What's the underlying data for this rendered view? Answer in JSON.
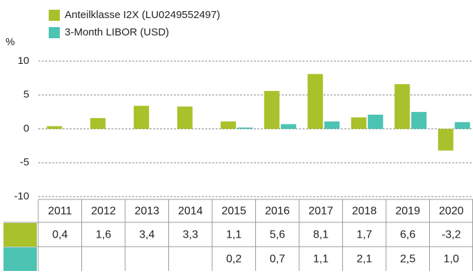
{
  "chart_data": {
    "type": "bar",
    "y_label": "%",
    "categories": [
      "2011",
      "2012",
      "2013",
      "2014",
      "2015",
      "2016",
      "2017",
      "2018",
      "2019",
      "2020"
    ],
    "series": [
      {
        "name": "Anteilklasse I2X (LU0249552497)",
        "color": "#a9c12a",
        "values": [
          0.4,
          1.6,
          3.4,
          3.3,
          1.1,
          5.6,
          8.1,
          1.7,
          6.6,
          -3.2
        ],
        "value_labels": [
          "0,4",
          "1,6",
          "3,4",
          "3,3",
          "1,1",
          "5,6",
          "8,1",
          "1,7",
          "6,6",
          "-3,2"
        ]
      },
      {
        "name": "3-Month LIBOR (USD)",
        "color": "#4dc3b4",
        "values": [
          null,
          null,
          null,
          null,
          0.2,
          0.7,
          1.1,
          2.1,
          2.5,
          1.0
        ],
        "value_labels": [
          null,
          null,
          null,
          null,
          "0,2",
          "0,7",
          "1,1",
          "2,1",
          "2,5",
          "1,0"
        ]
      }
    ],
    "ylim": [
      -10,
      10
    ],
    "yticks": [
      10,
      5,
      0,
      -5,
      -10
    ],
    "grid": true
  }
}
